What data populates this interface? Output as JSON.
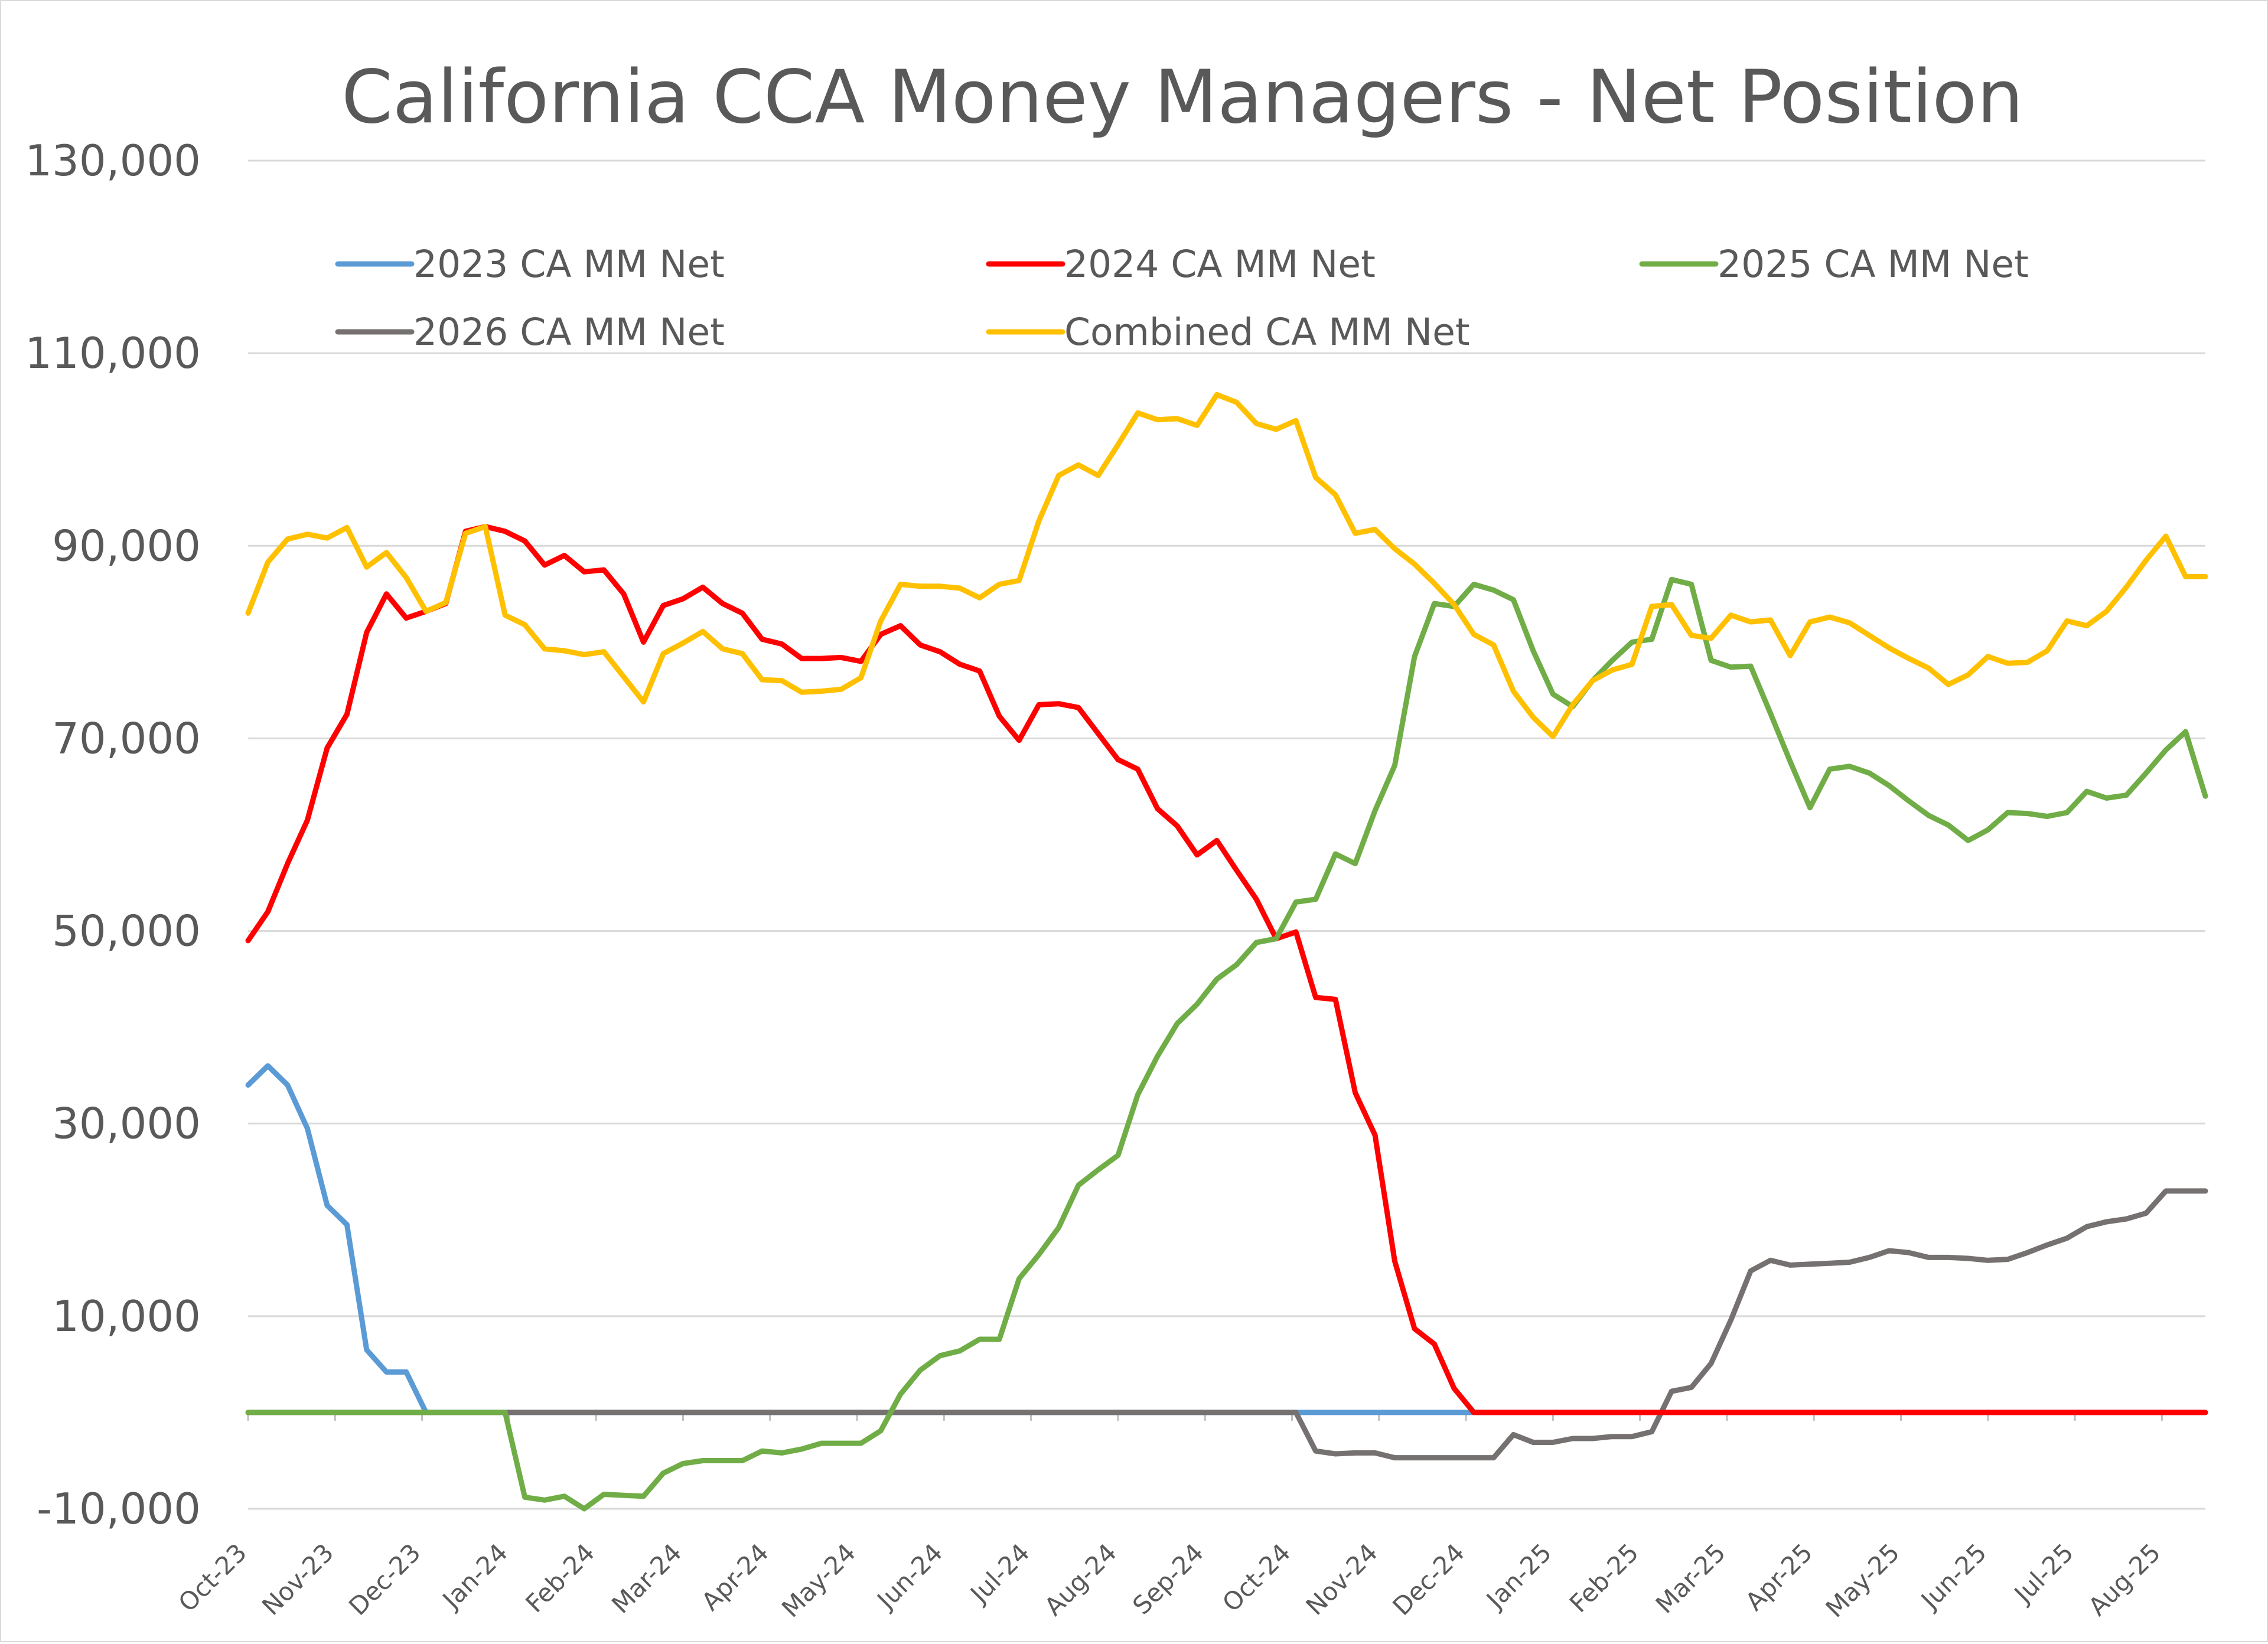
{
  "chart_data": {
    "type": "line",
    "title": "California CCA Money Managers - Net Position",
    "xlabel": "",
    "ylabel": "",
    "ylim": [
      -10000,
      130000
    ],
    "yticks": [
      -10000,
      10000,
      30000,
      50000,
      70000,
      90000,
      110000,
      130000
    ],
    "ytick_labels": [
      "-10,000",
      "10,000",
      "30,000",
      "50,000",
      "70,000",
      "90,000",
      "110,000",
      "130,000"
    ],
    "xtick_labels": [
      "Oct-23",
      "Nov-23",
      "Dec-23",
      "Jan-24",
      "Feb-24",
      "Mar-24",
      "Apr-24",
      "May-24",
      "Jun-24",
      "Jul-24",
      "Aug-24",
      "Sep-24",
      "Oct-24",
      "Nov-24",
      "Dec-24",
      "Jan-25",
      "Feb-25",
      "Mar-25",
      "Apr-25",
      "May-25",
      "Jun-25",
      "Jul-25",
      "Aug-25"
    ],
    "xtick_weeks": [
      0,
      4.4,
      8.8,
      13.2,
      17.6,
      22,
      26.4,
      30.8,
      35.2,
      39.6,
      44,
      48.4,
      52.8,
      57.2,
      61.6,
      66,
      70.4,
      74.8,
      79.2,
      83.6,
      88,
      92.4,
      96.8
    ],
    "x_unit": "weekly observations (100 weeks)",
    "grid": true,
    "legend_position": "top",
    "series": [
      {
        "name": "2023 CA MM Net",
        "color": "#5b9bd5",
        "values": [
          34000,
          36000,
          34000,
          29500,
          21500,
          19500,
          6500,
          4200,
          4200,
          0,
          0,
          0,
          0,
          0,
          0,
          0,
          0,
          0,
          0,
          0,
          0,
          0,
          0,
          0,
          0,
          0,
          0,
          0,
          0,
          0,
          0,
          0,
          0,
          0,
          0,
          0,
          0,
          0,
          0,
          0,
          0,
          0,
          0,
          0,
          0,
          0,
          0,
          0,
          0,
          0,
          0,
          0,
          0,
          0,
          0,
          0,
          0,
          0,
          0,
          0,
          0,
          0,
          0,
          0,
          0,
          0,
          0,
          0,
          0,
          0,
          0,
          0,
          0,
          0,
          0,
          0,
          0,
          0,
          0,
          0,
          0,
          0,
          0,
          0,
          0,
          0,
          0,
          0,
          0,
          0,
          0,
          0,
          0,
          0,
          0,
          0,
          0,
          0,
          0,
          0
        ]
      },
      {
        "name": "2024 CA MM Net",
        "color": "#ff0000",
        "values": [
          49000,
          52000,
          57000,
          61500,
          69000,
          72500,
          81000,
          85000,
          82500,
          83200,
          84000,
          91500,
          92000,
          91500,
          90500,
          88000,
          89000,
          87300,
          87500,
          85000,
          80000,
          83800,
          84500,
          85700,
          84000,
          83000,
          80300,
          79800,
          78300,
          78300,
          78400,
          78000,
          80800,
          81700,
          79700,
          79000,
          77700,
          77000,
          72300,
          69800,
          73500,
          73600,
          73200,
          70500,
          67800,
          66800,
          62700,
          60900,
          57900,
          59400,
          56300,
          53300,
          49200,
          49900,
          43100,
          42900,
          33200,
          28800,
          15700,
          8700,
          7100,
          2500,
          0,
          0,
          0,
          0,
          0,
          0,
          0,
          0,
          0,
          0,
          0,
          0,
          0,
          0,
          0,
          0,
          0,
          0,
          0,
          0,
          0,
          0,
          0,
          0,
          0,
          0,
          0,
          0,
          0,
          0,
          0,
          0,
          0,
          0,
          0,
          0,
          0,
          0
        ]
      },
      {
        "name": "2025 CA MM Net",
        "color": "#70ad47",
        "values": [
          0,
          0,
          0,
          0,
          0,
          0,
          0,
          0,
          0,
          0,
          0,
          0,
          0,
          0,
          -8800,
          -9100,
          -8700,
          -10000,
          -8500,
          -8600,
          -8700,
          -6300,
          -5300,
          -5000,
          -5000,
          -5000,
          -4000,
          -4200,
          -3800,
          -3200,
          -3200,
          -3200,
          -1900,
          1900,
          4400,
          5900,
          6400,
          7600,
          7600,
          13900,
          16400,
          19200,
          23600,
          25200,
          26700,
          33000,
          37000,
          40400,
          42400,
          45000,
          46500,
          48800,
          49200,
          53000,
          53300,
          58000,
          57000,
          62500,
          67200,
          78500,
          84000,
          83700,
          86000,
          85400,
          84400,
          79100,
          74600,
          73300,
          76000,
          78100,
          80000,
          80300,
          86500,
          86000,
          78100,
          77400,
          77500,
          72600,
          67600,
          62800,
          66800,
          67100,
          66400,
          65100,
          63500,
          62000,
          61000,
          59400,
          60500,
          62300,
          62200,
          61900,
          62300,
          64500,
          63800,
          64100,
          66400,
          68800,
          70700,
          64000
        ]
      },
      {
        "name": "2026 CA MM Net",
        "color": "#767171",
        "values": [
          0,
          0,
          0,
          0,
          0,
          0,
          0,
          0,
          0,
          0,
          0,
          0,
          0,
          0,
          0,
          0,
          0,
          0,
          0,
          0,
          0,
          0,
          0,
          0,
          0,
          0,
          0,
          0,
          0,
          0,
          0,
          0,
          0,
          0,
          0,
          0,
          0,
          0,
          0,
          0,
          0,
          0,
          0,
          0,
          0,
          0,
          0,
          0,
          0,
          0,
          0,
          0,
          0,
          0,
          -4000,
          -4300,
          -4200,
          -4200,
          -4700,
          -4700,
          -4700,
          -4700,
          -4700,
          -4700,
          -2300,
          -3100,
          -3100,
          -2700,
          -2700,
          -2500,
          -2500,
          -2000,
          2200,
          2600,
          5100,
          9600,
          14700,
          15800,
          15300,
          15400,
          15500,
          15600,
          16100,
          16800,
          16600,
          16100,
          16100,
          16000,
          15800,
          15900,
          16600,
          17400,
          18100,
          19300,
          19800,
          20100,
          20700,
          23000,
          23000,
          23000
        ]
      },
      {
        "name": "Combined CA MM Net",
        "color": "#ffc000",
        "values": [
          83000,
          88300,
          90700,
          91200,
          90800,
          91900,
          87800,
          89300,
          86700,
          83200,
          84100,
          91300,
          92000,
          82800,
          81800,
          79300,
          79100,
          78700,
          79000,
          76400,
          73800,
          78800,
          79900,
          81100,
          79300,
          78800,
          76100,
          76000,
          74800,
          74900,
          75100,
          76300,
          82200,
          86000,
          85800,
          85800,
          85600,
          84600,
          86000,
          86400,
          92600,
          97300,
          98400,
          97300,
          100500,
          103800,
          103100,
          103200,
          102500,
          105700,
          104900,
          102700,
          102100,
          103000,
          97100,
          95300,
          91300,
          91700,
          89700,
          88100,
          86100,
          83900,
          80800,
          79700,
          74900,
          72200,
          70200,
          73500,
          76000,
          77100,
          77700,
          83700,
          83900,
          80700,
          80400,
          82800,
          82100,
          82300,
          78600,
          82100,
          82600,
          82000,
          80700,
          79400,
          78300,
          77300,
          75600,
          76600,
          78500,
          77800,
          77900,
          79100,
          82200,
          81700,
          83200,
          85700,
          88500,
          91000,
          86800,
          86800
        ]
      }
    ]
  }
}
